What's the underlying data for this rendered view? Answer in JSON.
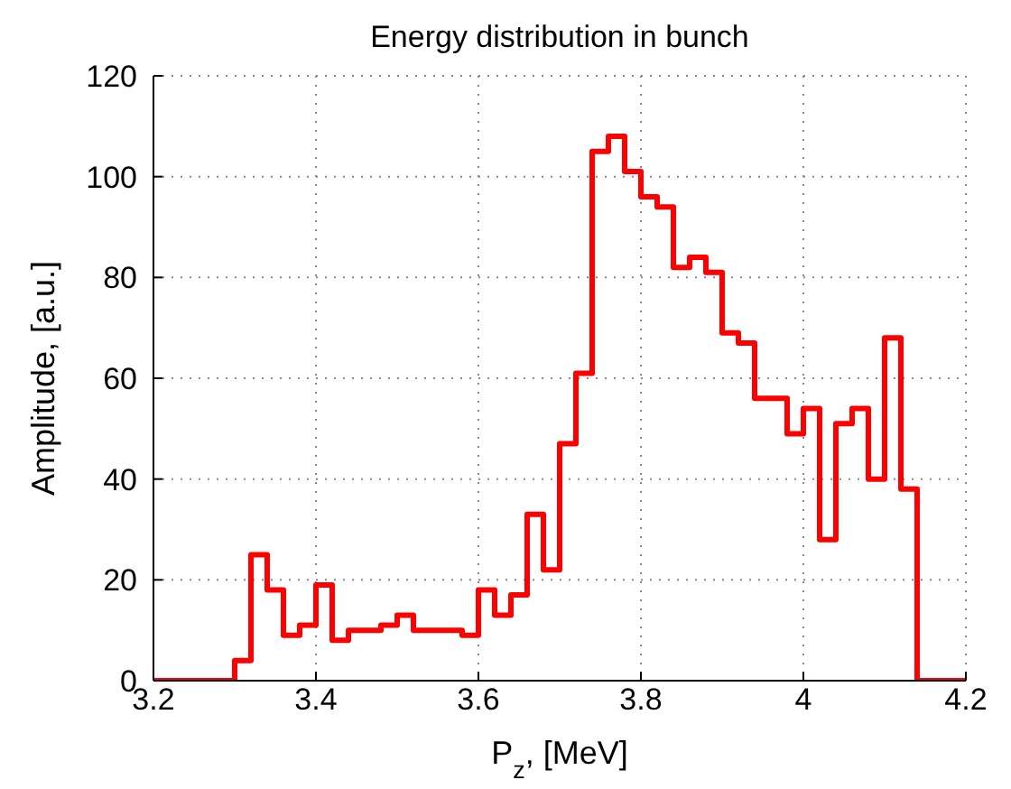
{
  "chart_data": {
    "type": "histogram",
    "title": "Energy distribution in bunch",
    "xlabel": "P$_{z}$, [MeV]",
    "ylabel": "Amplitude, [a.u.]",
    "bins": [
      3.2,
      3.22,
      3.24,
      3.26,
      3.28,
      3.3,
      3.32,
      3.34,
      3.36,
      3.38,
      3.4,
      3.42,
      3.44,
      3.46,
      3.48,
      3.5,
      3.52,
      3.54,
      3.56,
      3.58,
      3.6,
      3.62,
      3.64,
      3.66,
      3.68,
      3.7,
      3.72,
      3.74,
      3.76,
      3.78,
      3.8,
      3.82,
      3.84,
      3.86,
      3.88,
      3.9,
      3.92,
      3.94,
      3.96,
      3.98,
      4.0,
      4.02,
      4.04,
      4.06,
      4.08,
      4.1,
      4.12,
      4.14,
      4.16,
      4.18,
      4.2
    ],
    "values": [
      0,
      0,
      0,
      0,
      0,
      4,
      25,
      18,
      9,
      11,
      19,
      8,
      10,
      10,
      11,
      13,
      10,
      10,
      10,
      9,
      18,
      13,
      17,
      33,
      22,
      47,
      61,
      105,
      108,
      101,
      96,
      94,
      82,
      84,
      81,
      69,
      67,
      56,
      56,
      49,
      54,
      28,
      51,
      54,
      40,
      68,
      38,
      0,
      0,
      0
    ],
    "color": "#ff0000",
    "xlim": [
      3.2,
      4.2
    ],
    "xticks": [
      3.2,
      3.4,
      3.6,
      3.8,
      4,
      4.2
    ],
    "ylim": [
      0,
      120
    ],
    "yticks": [
      0,
      20,
      40,
      60,
      80,
      100,
      120
    ],
    "grid": true
  }
}
